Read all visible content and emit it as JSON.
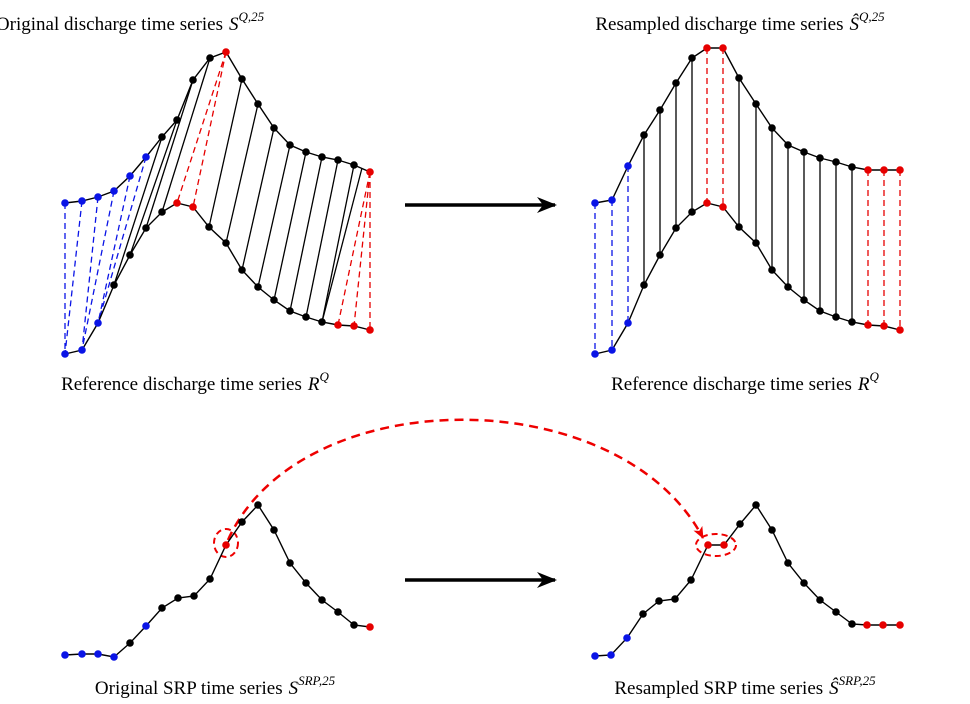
{
  "labels": [
    {
      "text": "Original discharge time series",
      "symbol": "S",
      "superscript": "Q,25"
    },
    {
      "text": "Resampled discharge time series",
      "symbol": "Ŝ",
      "superscript": "Q,25"
    },
    {
      "text": "Reference discharge time series",
      "symbol": "R",
      "superscript": "Q"
    },
    {
      "text": "Reference discharge time series",
      "symbol": "R",
      "superscript": "Q"
    },
    {
      "text": "Original SRP time series",
      "symbol": "S",
      "superscript": "SRP,25"
    },
    {
      "text": "Resampled SRP time series",
      "symbol": "Ŝ",
      "superscript": "SRP,25"
    }
  ]
}
